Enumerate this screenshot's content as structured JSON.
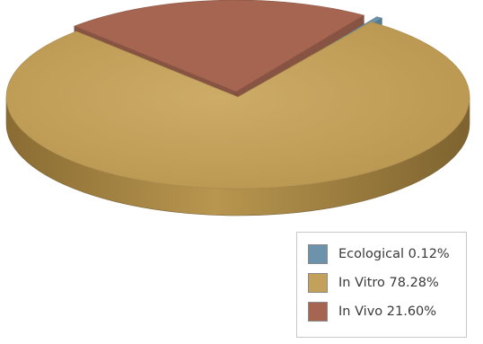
{
  "chart_data": {
    "type": "pie",
    "title": "",
    "style": "3d-exploded",
    "legend_position": "bottom-right",
    "slices": [
      {
        "label": "In Vitro 78.28%",
        "value": 78.28,
        "color": "#c3a15b"
      },
      {
        "label": "In Vivo 21.60%",
        "value": 21.6,
        "color": "#a56550"
      },
      {
        "label": "Ecological 0.12%",
        "value": 0.12,
        "color": "#6d93ac"
      }
    ],
    "legend_order": [
      2,
      0,
      1
    ]
  }
}
